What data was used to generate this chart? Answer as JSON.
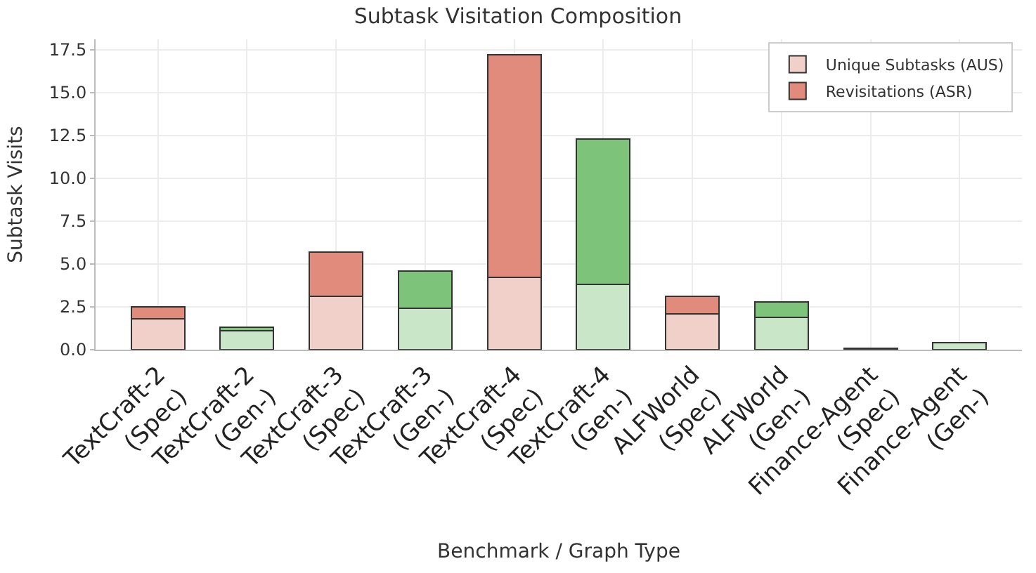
{
  "chart_data": {
    "type": "bar",
    "title": "Subtask Visitation Composition",
    "xlabel": "Benchmark / Graph Type",
    "ylabel": "Subtask Visits",
    "categories": [
      "TextCraft-2\n(Spec)",
      "TextCraft-2\n(Gen-)",
      "TextCraft-3\n(Spec)",
      "TextCraft-3\n(Gen-)",
      "TextCraft-4\n(Spec)",
      "TextCraft-4\n(Gen-)",
      "ALFWorld\n(Spec)",
      "ALFWorld\n(Gen-)",
      "Finance-Agent\n(Spec)",
      "Finance-Agent\n(Gen-)"
    ],
    "stacked": true,
    "series": [
      {
        "name": "Unique Subtasks (AUS)",
        "colors": [
          "#f2d0ca",
          "#c9e7c8",
          "#f2d0ca",
          "#c9e7c8",
          "#f2d0ca",
          "#c9e7c8",
          "#f2d0ca",
          "#c9e7c8",
          "#f2d0ca",
          "#c9e7c8"
        ],
        "values": [
          1.8,
          1.1,
          3.1,
          2.4,
          4.2,
          3.8,
          2.1,
          1.9,
          0.1,
          0.4
        ]
      },
      {
        "name": "Revisitations (ASR)",
        "colors": [
          "#e08b7b",
          "#7dc47a",
          "#e08b7b",
          "#7dc47a",
          "#e08b7b",
          "#7dc47a",
          "#e08b7b",
          "#7dc47a",
          "#e08b7b",
          "#7dc47a"
        ],
        "values": [
          0.7,
          0.2,
          2.6,
          2.2,
          13.0,
          8.5,
          1.0,
          0.9,
          null,
          null
        ]
      }
    ],
    "ylim": [
      0,
      18.1
    ],
    "yticks": [
      {
        "value": 0,
        "label": "0.0"
      },
      2.5,
      {
        "value": 5,
        "label": "5.0"
      },
      7.5,
      {
        "value": 10,
        "label": "10.0"
      },
      12.5,
      {
        "value": 15,
        "label": "15.0"
      },
      17.5
    ],
    "grid": true,
    "legend": "top right"
  }
}
